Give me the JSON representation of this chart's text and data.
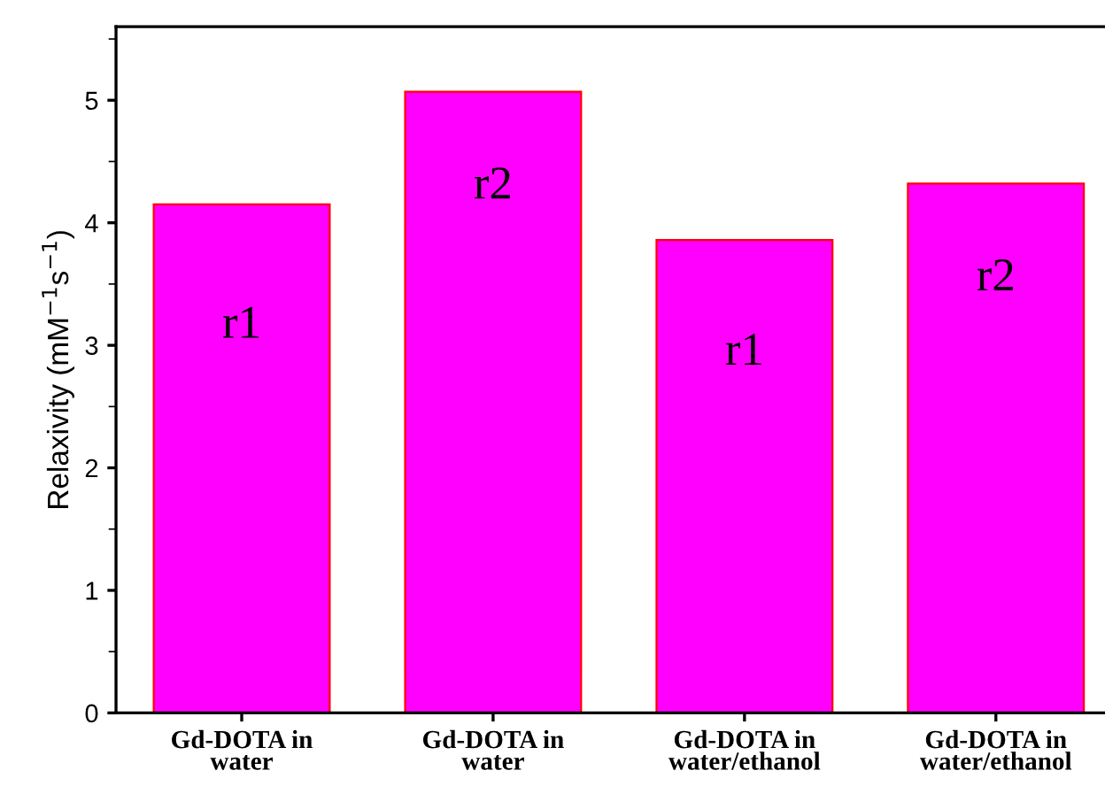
{
  "chart_data": {
    "type": "bar",
    "ylabel": "Relaxivity (mM$^{−1}$s$^{−1}$)",
    "categories": [
      "Gd-DOTA in\nwater",
      "Gd-DOTA in\nwater",
      "Gd-DOTA in\nwater/ethanol",
      "Gd-DOTA in\nwater/ethanol"
    ],
    "values": [
      4.15,
      5.07,
      3.86,
      4.32
    ],
    "color": "#ff00ff",
    "annotations": [
      "r1",
      "r2",
      "r1",
      "r2"
    ],
    "ylim": [
      0,
      5.6
    ],
    "yticks": [
      0,
      1,
      2,
      3,
      4,
      5
    ],
    "grid": false,
    "legend": false
  }
}
